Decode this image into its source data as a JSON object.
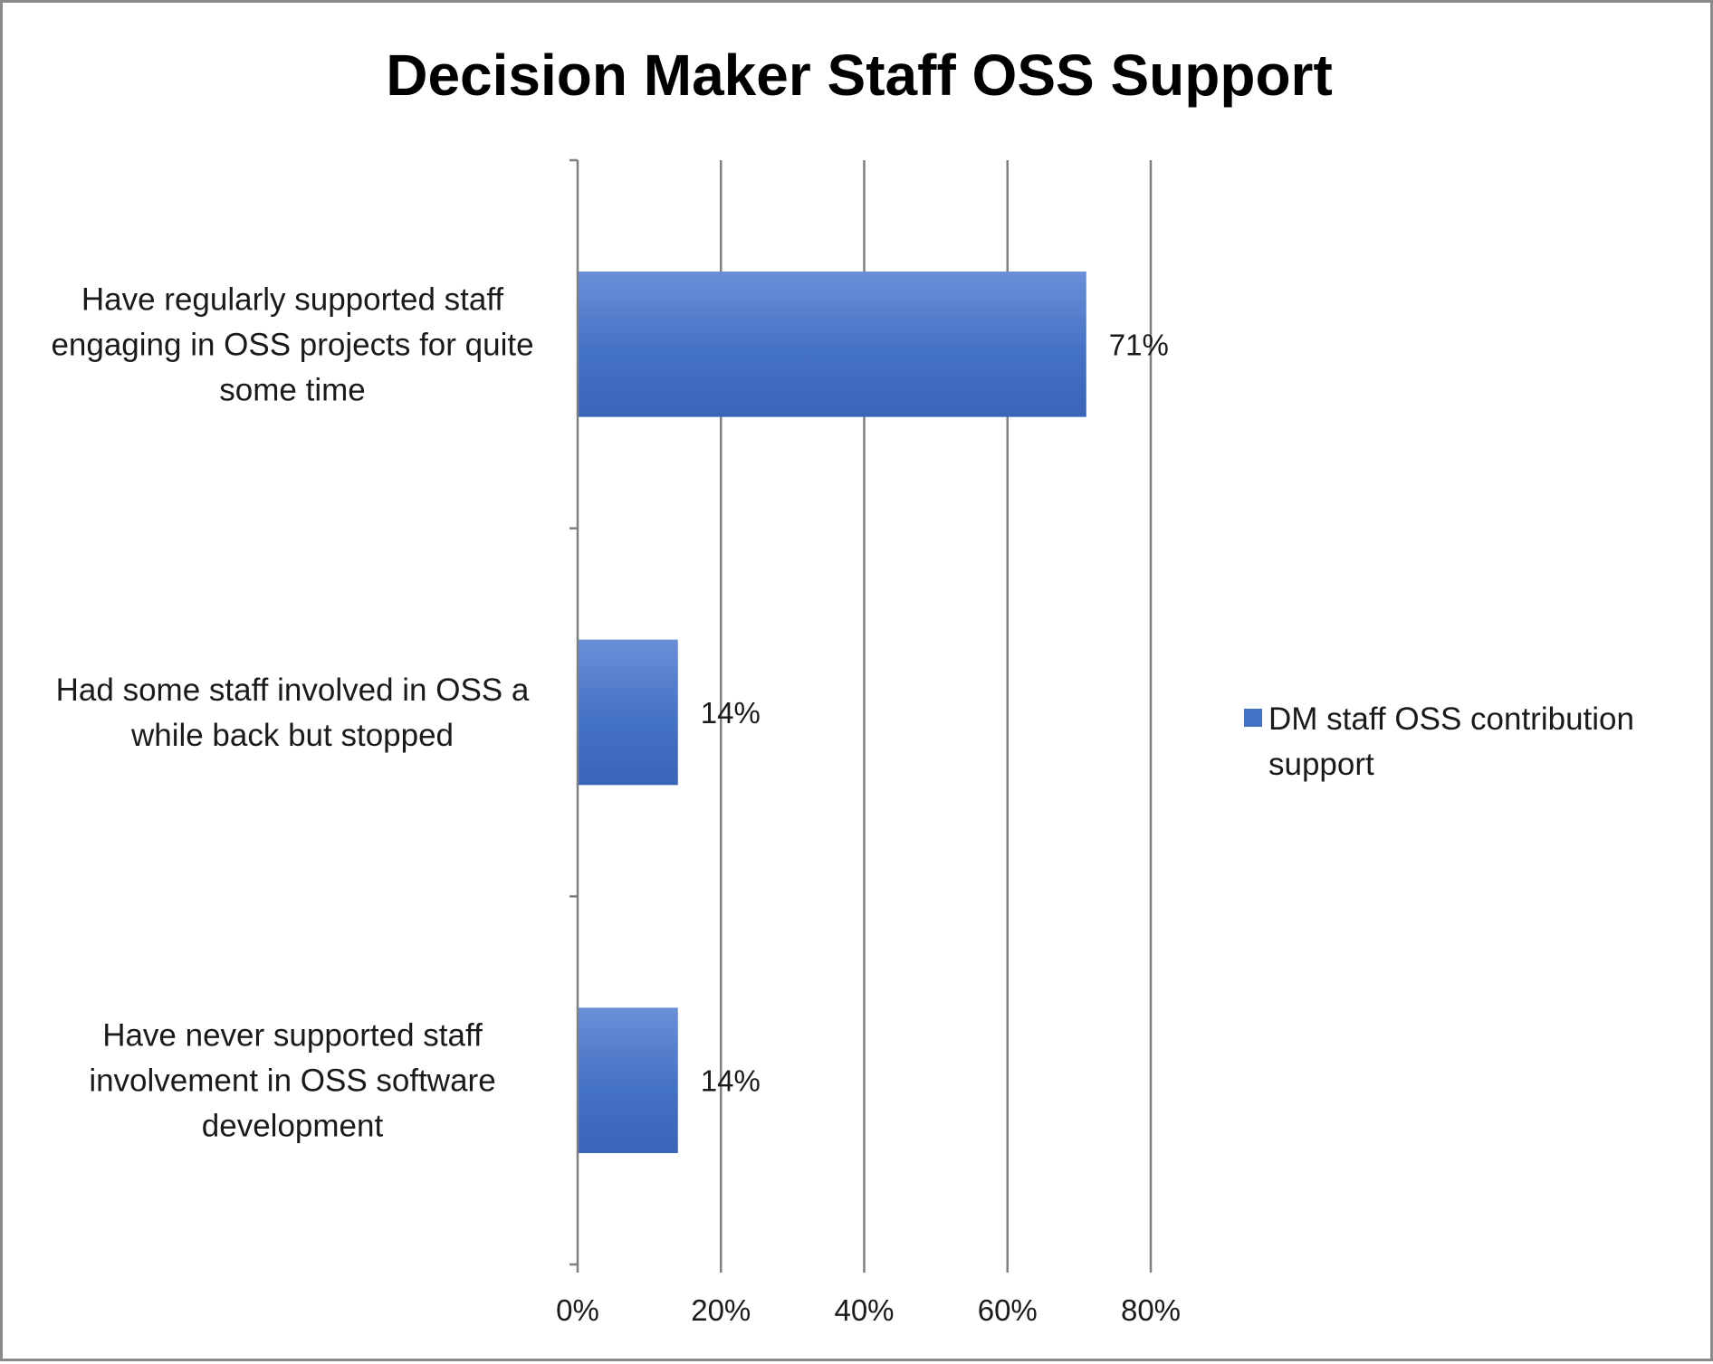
{
  "chart_data": {
    "type": "bar",
    "orientation": "horizontal",
    "title": "Decision Maker Staff OSS Support",
    "categories": [
      [
        "Have regularly supported staff",
        "engaging in OSS projects for quite",
        "some time"
      ],
      [
        "Had some staff involved in OSS a",
        "while back but stopped"
      ],
      [
        "Have never supported staff",
        "involvement in OSS software",
        "development"
      ]
    ],
    "series": [
      {
        "name": "DM staff OSS contribution support",
        "values": [
          71,
          14,
          14
        ],
        "labels": [
          "71%",
          "14%",
          "14%"
        ],
        "color": "#4472c4"
      }
    ],
    "xlim": [
      0,
      80
    ],
    "xticks": [
      0,
      20,
      40,
      60,
      80
    ],
    "xtick_labels": [
      "0%",
      "20%",
      "40%",
      "60%",
      "80%"
    ],
    "grid": true,
    "legend": {
      "position": "right",
      "lines": [
        "DM staff OSS contribution",
        "support"
      ]
    }
  }
}
